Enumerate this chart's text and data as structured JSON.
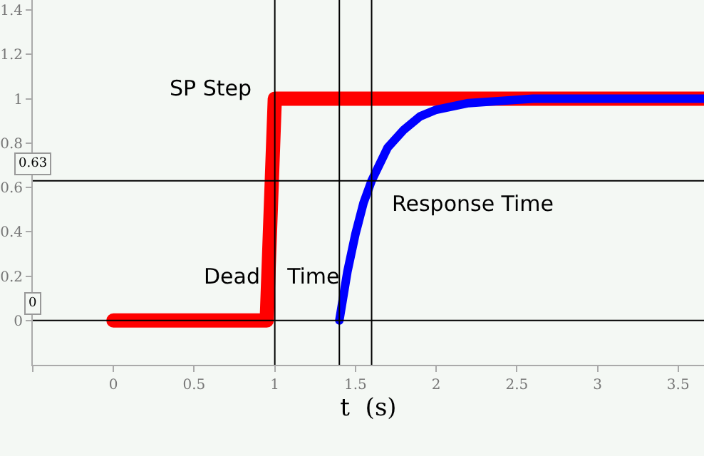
{
  "chart_data": {
    "type": "line",
    "xlabel": "t  (s)",
    "series": [
      {
        "color": "#ff0000",
        "x": [
          0,
          0.95,
          1.0,
          3.66
        ],
        "values": [
          0,
          0,
          1,
          1
        ]
      },
      {
        "color": "#0000ff",
        "x": [
          1.4,
          1.45,
          1.5,
          1.55,
          1.6,
          1.7,
          1.8,
          1.9,
          2.0,
          2.2,
          2.4,
          2.6,
          3.66
        ],
        "values": [
          0,
          0.22,
          0.39,
          0.53,
          0.63,
          0.78,
          0.86,
          0.92,
          0.95,
          0.98,
          0.99,
          1.0,
          1.0
        ]
      }
    ],
    "xlim": [
      -0.5,
      3.66
    ],
    "ylim": [
      -0.2,
      1.445
    ],
    "xticks": [
      {
        "value": -0.5,
        "label": null
      },
      0,
      0.5,
      1,
      1.5,
      2,
      2.5,
      3,
      3.5
    ],
    "yticks": [
      0,
      0.2,
      0.4,
      0.6,
      0.8,
      1,
      1.2,
      1.4
    ],
    "ref_lines": [
      {
        "axis": "x",
        "value": 1,
        "label": null,
        "color": "#000000"
      },
      {
        "axis": "x",
        "value": 1.4,
        "label": null,
        "color": "#000000"
      },
      {
        "axis": "x",
        "value": 1.6,
        "label": null,
        "color": "#000000"
      },
      {
        "axis": "y",
        "value": 0.63,
        "label": "0.63",
        "color": "#000000"
      },
      {
        "axis": "y",
        "value": 0,
        "label": "0",
        "color": "#000000"
      }
    ],
    "annotations": [
      "SP Step",
      {
        "text": "Dead    Time",
        "x": 0.98,
        "y": 0.2
      },
      "Response Time"
    ],
    "grid": false,
    "legend": false,
    "marker": "none",
    "line_style": "solid"
  }
}
